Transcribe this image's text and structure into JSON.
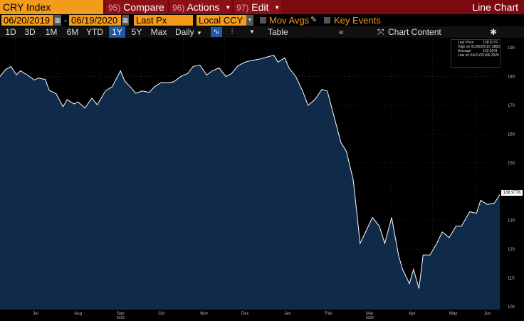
{
  "toolbar": {
    "ticker": "CRY Index",
    "compare": {
      "num": "95)",
      "label": "Compare"
    },
    "actions": {
      "num": "96)",
      "label": "Actions"
    },
    "edit": {
      "num": "97)",
      "label": "Edit"
    },
    "title": "Line Chart"
  },
  "controls": {
    "start_date": "06/20/2019",
    "end_date": "06/19/2020",
    "separator": "-",
    "field": "Last Px",
    "currency": "Local CCY",
    "mov_avgs": "Mov Avgs",
    "key_events": "Key Events"
  },
  "ranges": {
    "items": [
      "1D",
      "3D",
      "1M",
      "6M",
      "YTD",
      "1Y",
      "5Y",
      "Max"
    ],
    "active": "1Y",
    "frequency": "Daily",
    "table": "Table",
    "chart_content": "Chart Content"
  },
  "legend": {
    "last_price_label": "Last Price",
    "last_price": "138.9776",
    "high_label": "High on 01/06/20",
    "high": "187.3883",
    "avg_label": "Average",
    "avg": "162.5241",
    "low_label": "Low on 04/21/20",
    "low": "106.2929"
  },
  "last_badge": "138.9776",
  "colors": {
    "accent": "#f39b1b",
    "bar": "#7a0a10",
    "line": "#ffffff",
    "fill": "#102a4a"
  },
  "chart_data": {
    "type": "area",
    "x_tick_labels": [
      "Jul",
      "Aug",
      "Sep",
      "Oct",
      "Nov",
      "Dec",
      "Jan",
      "Feb",
      "Mar",
      "Apr",
      "May",
      "Jun"
    ],
    "year_labels": [
      "2019",
      "2020"
    ],
    "y_ticks": [
      100,
      110,
      120,
      130,
      140,
      150,
      160,
      170,
      180,
      190
    ],
    "ylim": [
      99,
      193
    ],
    "series": [
      {
        "x": [
          "2019-06-20",
          "2019-06-24",
          "2019-06-28",
          "2019-07-02",
          "2019-07-05",
          "2019-07-10",
          "2019-07-15",
          "2019-07-18",
          "2019-07-23",
          "2019-07-26",
          "2019-07-31",
          "2019-08-05",
          "2019-08-08",
          "2019-08-13",
          "2019-08-16",
          "2019-08-21",
          "2019-08-26",
          "2019-08-30",
          "2019-09-05",
          "2019-09-10",
          "2019-09-16",
          "2019-09-19",
          "2019-09-24",
          "2019-09-27",
          "2019-10-02",
          "2019-10-07",
          "2019-10-11",
          "2019-10-16",
          "2019-10-21",
          "2019-10-25",
          "2019-10-30",
          "2019-11-04",
          "2019-11-08",
          "2019-11-13",
          "2019-11-18",
          "2019-11-22",
          "2019-11-27",
          "2019-12-02",
          "2019-12-06",
          "2019-12-11",
          "2019-12-16",
          "2019-12-20",
          "2019-12-26",
          "2020-01-06",
          "2020-01-09",
          "2020-01-14",
          "2020-01-17",
          "2020-01-22",
          "2020-01-27",
          "2020-01-31",
          "2020-02-05",
          "2020-02-10",
          "2020-02-14",
          "2020-02-19",
          "2020-02-24",
          "2020-02-28",
          "2020-03-04",
          "2020-03-09",
          "2020-03-13",
          "2020-03-18",
          "2020-03-23",
          "2020-03-27",
          "2020-04-01",
          "2020-04-06",
          "2020-04-09",
          "2020-04-14",
          "2020-04-17",
          "2020-04-21",
          "2020-04-24",
          "2020-04-29",
          "2020-05-04",
          "2020-05-08",
          "2020-05-13",
          "2020-05-18",
          "2020-05-22",
          "2020-05-28",
          "2020-06-02",
          "2020-06-05",
          "2020-06-10",
          "2020-06-15",
          "2020-06-19"
        ],
        "y": [
          180.0,
          182.4,
          183.5,
          180.6,
          182.0,
          180.5,
          178.8,
          179.5,
          179.0,
          175.2,
          174.0,
          169.5,
          172.0,
          170.5,
          171.2,
          169.0,
          172.5,
          170.2,
          175.0,
          176.5,
          182.0,
          178.5,
          176.0,
          174.2,
          175.0,
          174.5,
          176.5,
          178.0,
          177.8,
          178.2,
          180.0,
          181.0,
          183.5,
          184.0,
          180.5,
          182.0,
          183.0,
          180.0,
          181.0,
          183.8,
          185.0,
          185.5,
          186.0,
          187.4,
          185.0,
          186.5,
          183.0,
          180.0,
          175.0,
          170.0,
          172.0,
          175.5,
          175.0,
          166.0,
          157.0,
          154.0,
          144.0,
          122.0,
          126.0,
          131.0,
          128.0,
          122.0,
          131.0,
          118.0,
          113.0,
          108.0,
          113.0,
          106.3,
          118.0,
          118.0,
          122.0,
          126.0,
          124.0,
          128.0,
          128.0,
          133.0,
          132.5,
          137.0,
          135.5,
          136.0,
          138.98
        ]
      }
    ]
  }
}
